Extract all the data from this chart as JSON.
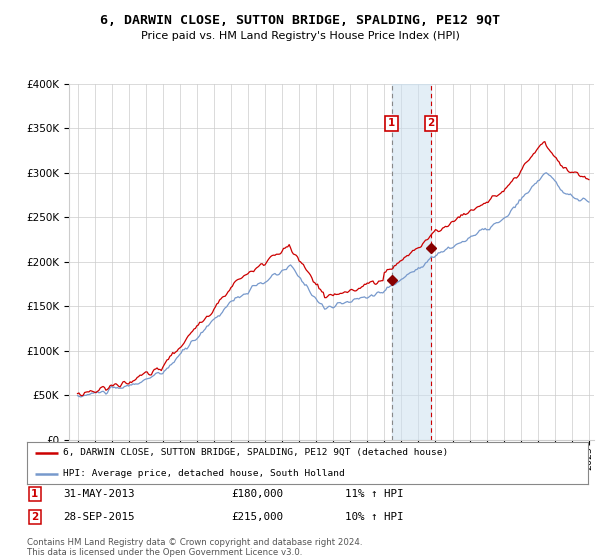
{
  "title": "6, DARWIN CLOSE, SUTTON BRIDGE, SPALDING, PE12 9QT",
  "subtitle": "Price paid vs. HM Land Registry's House Price Index (HPI)",
  "legend_line1": "6, DARWIN CLOSE, SUTTON BRIDGE, SPALDING, PE12 9QT (detached house)",
  "legend_line2": "HPI: Average price, detached house, South Holland",
  "transaction1_date": "31-MAY-2013",
  "transaction1_price": 180000,
  "transaction1_hpi": "11% ↑ HPI",
  "transaction2_date": "28-SEP-2015",
  "transaction2_price": 215000,
  "transaction2_hpi": "10% ↑ HPI",
  "footer": "Contains HM Land Registry data © Crown copyright and database right 2024.\nThis data is licensed under the Open Government Licence v3.0.",
  "red_color": "#cc0000",
  "blue_color": "#7799cc",
  "background_color": "#ffffff",
  "grid_color": "#cccccc",
  "start_year": 1995,
  "end_year": 2025,
  "ylim_min": 0,
  "ylim_max": 400000,
  "yticks": [
    0,
    50000,
    100000,
    150000,
    200000,
    250000,
    300000,
    350000,
    400000
  ],
  "transaction1_year": 2013.42,
  "transaction2_year": 2015.75
}
